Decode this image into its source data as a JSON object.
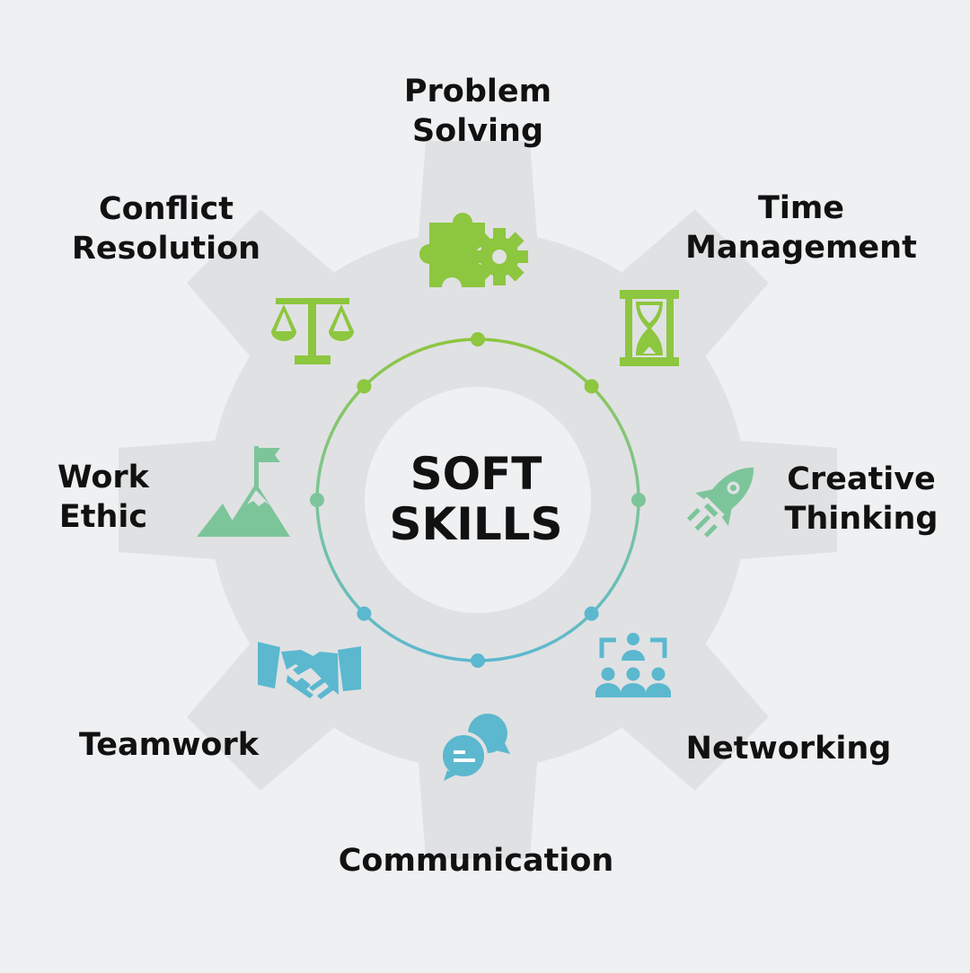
{
  "center": {
    "line1": "SOFT",
    "line2": "SKILLS"
  },
  "skills": [
    {
      "line1": "Problem",
      "line2": "Solving",
      "icon": "puzzle-gear-icon",
      "color": "#8dc63f"
    },
    {
      "line1": "Time",
      "line2": "Management",
      "icon": "hourglass-icon",
      "color": "#8dc63f"
    },
    {
      "line1": "Creative",
      "line2": "Thinking",
      "icon": "rocket-icon",
      "color": "#7cc59a"
    },
    {
      "line1": "Networking",
      "line2": "",
      "icon": "network-people-icon",
      "color": "#5bb8cf"
    },
    {
      "line1": "Communication",
      "line2": "",
      "icon": "speech-bubbles-icon",
      "color": "#5bb8cf"
    },
    {
      "line1": "Teamwork",
      "line2": "",
      "icon": "handshake-icon",
      "color": "#5bb8cf"
    },
    {
      "line1": "Work",
      "line2": "Ethic",
      "icon": "mountain-flag-icon",
      "color": "#7cc59a"
    },
    {
      "line1": "Conflict",
      "line2": "Resolution",
      "icon": "scales-icon",
      "color": "#8dc63f"
    }
  ],
  "colors": {
    "background": "#eef0f2",
    "gear": "#e0e1e3",
    "hub": "#eef0f2",
    "green": "#8dc63f",
    "teal": "#7cc59a",
    "blue": "#5bb8cf",
    "text": "#111111"
  }
}
